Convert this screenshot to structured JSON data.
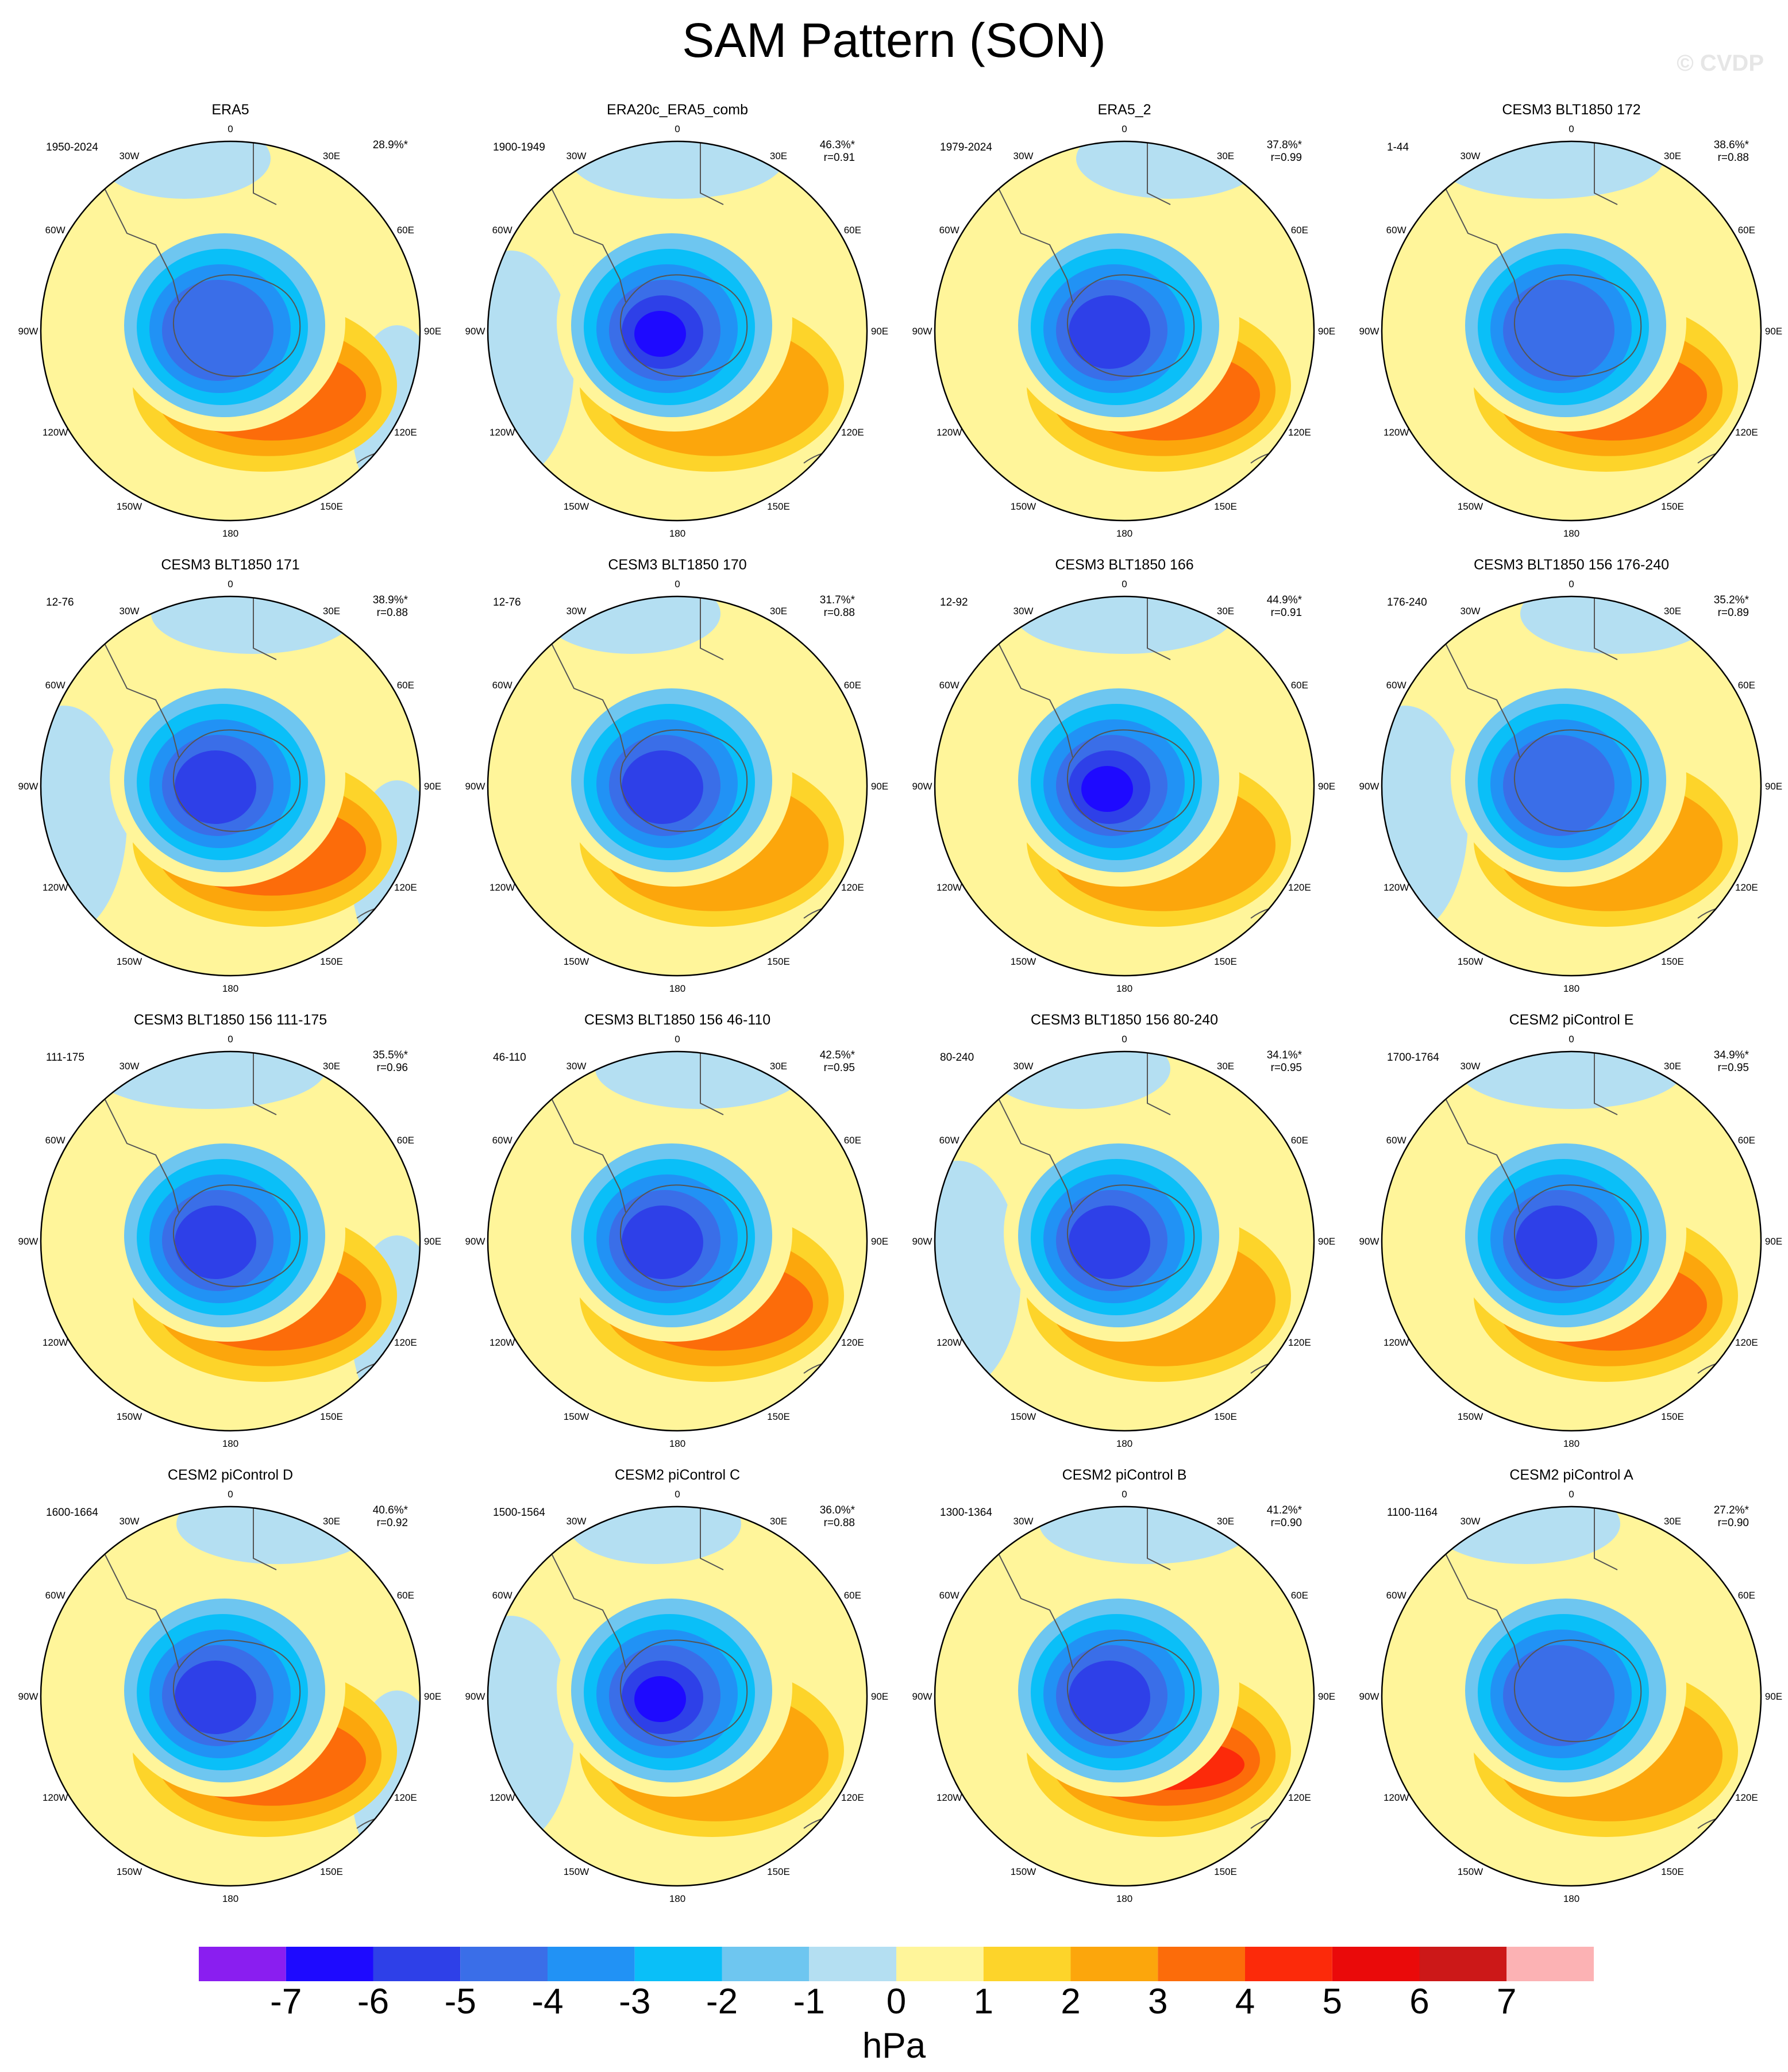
{
  "title": "SAM Pattern (SON)",
  "watermark": "© CVDP",
  "units": "hPa",
  "lon_labels": [
    "0",
    "30E",
    "60E",
    "90E",
    "120E",
    "150E",
    "180",
    "150W",
    "120W",
    "90W",
    "60W",
    "30W"
  ],
  "colorbar": {
    "ticks": [
      "-7",
      "-6",
      "-5",
      "-4",
      "-3",
      "-2",
      "-1",
      "0",
      "1",
      "2",
      "3",
      "4",
      "5",
      "6",
      "7"
    ],
    "colors": [
      "#8a1ef0",
      "#1e0aff",
      "#2e40e8",
      "#3a6ee8",
      "#2192f5",
      "#0abff8",
      "#6ec6f0",
      "#b4dff2",
      "#fff59a",
      "#fdd42a",
      "#fca60c",
      "#fc6c0a",
      "#fc2a0a",
      "#ea0a0a",
      "#cc1818",
      "#fcb2b4"
    ]
  },
  "chart_data": {
    "type": "heatmap",
    "projection": "south polar stereographic",
    "variable": "SAM Pattern (SON)",
    "units": "hPa",
    "levels": [
      -7,
      -6,
      -5,
      -4,
      -3,
      -2,
      -1,
      0,
      1,
      2,
      3,
      4,
      5,
      6,
      7
    ],
    "panels": [
      {
        "name": "ERA5",
        "years": "1950-2024",
        "variance": "28.9%*",
        "r": "",
        "min_level": -4,
        "max_level": 3
      },
      {
        "name": "ERA20c_ERA5_comb",
        "years": "1900-1949",
        "variance": "46.3%*",
        "r": "r=0.91",
        "min_level": -6,
        "max_level": 2
      },
      {
        "name": "ERA5_2",
        "years": "1979-2024",
        "variance": "37.8%*",
        "r": "r=0.99",
        "min_level": -5,
        "max_level": 3
      },
      {
        "name": "CESM3 BLT1850 172",
        "years": "1-44",
        "variance": "38.6%*",
        "r": "r=0.88",
        "min_level": -4,
        "max_level": 3
      },
      {
        "name": "CESM3 BLT1850 171",
        "years": "12-76",
        "variance": "38.9%*",
        "r": "r=0.88",
        "min_level": -5,
        "max_level": 3
      },
      {
        "name": "CESM3 BLT1850 170",
        "years": "12-76",
        "variance": "31.7%*",
        "r": "r=0.88",
        "min_level": -5,
        "max_level": 2
      },
      {
        "name": "CESM3 BLT1850 166",
        "years": "12-92",
        "variance": "44.9%*",
        "r": "r=0.91",
        "min_level": -6,
        "max_level": 2
      },
      {
        "name": "CESM3 BLT1850 156 176-240",
        "years": "176-240",
        "variance": "35.2%*",
        "r": "r=0.89",
        "min_level": -4,
        "max_level": 2
      },
      {
        "name": "CESM3 BLT1850 156 111-175",
        "years": "111-175",
        "variance": "35.5%*",
        "r": "r=0.96",
        "min_level": -5,
        "max_level": 3
      },
      {
        "name": "CESM3 BLT1850 156 46-110",
        "years": "46-110",
        "variance": "42.5%*",
        "r": "r=0.95",
        "min_level": -5,
        "max_level": 3
      },
      {
        "name": "CESM3 BLT1850 156 80-240",
        "years": "80-240",
        "variance": "34.1%*",
        "r": "r=0.95",
        "min_level": -5,
        "max_level": 2
      },
      {
        "name": "CESM2 piControl E",
        "years": "1700-1764",
        "variance": "34.9%*",
        "r": "r=0.95",
        "min_level": -5,
        "max_level": 3
      },
      {
        "name": "CESM2 piControl D",
        "years": "1600-1664",
        "variance": "40.6%*",
        "r": "r=0.92",
        "min_level": -5,
        "max_level": 3
      },
      {
        "name": "CESM2 piControl C",
        "years": "1500-1564",
        "variance": "36.0%*",
        "r": "r=0.88",
        "min_level": -6,
        "max_level": 2
      },
      {
        "name": "CESM2 piControl B",
        "years": "1300-1364",
        "variance": "41.2%*",
        "r": "r=0.90",
        "min_level": -5,
        "max_level": 4
      },
      {
        "name": "CESM2 piControl A",
        "years": "1100-1164",
        "variance": "27.2%*",
        "r": "r=0.90",
        "min_level": -4,
        "max_level": 2
      }
    ]
  }
}
